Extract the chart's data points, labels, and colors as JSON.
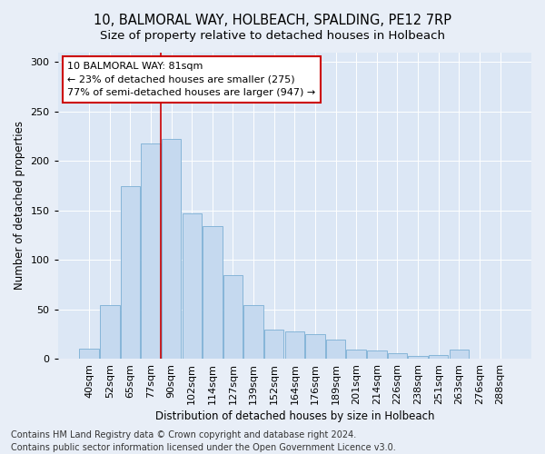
{
  "title": "10, BALMORAL WAY, HOLBEACH, SPALDING, PE12 7RP",
  "subtitle": "Size of property relative to detached houses in Holbeach",
  "xlabel": "Distribution of detached houses by size in Holbeach",
  "ylabel": "Number of detached properties",
  "categories": [
    "40sqm",
    "52sqm",
    "65sqm",
    "77sqm",
    "90sqm",
    "102sqm",
    "114sqm",
    "127sqm",
    "139sqm",
    "152sqm",
    "164sqm",
    "176sqm",
    "189sqm",
    "201sqm",
    "214sqm",
    "226sqm",
    "238sqm",
    "251sqm",
    "263sqm",
    "276sqm",
    "288sqm"
  ],
  "values": [
    10,
    54,
    175,
    218,
    222,
    147,
    134,
    85,
    54,
    29,
    28,
    25,
    19,
    9,
    8,
    6,
    3,
    4,
    9,
    0,
    0
  ],
  "bar_color": "#c5d9ef",
  "bar_edge_color": "#7bafd4",
  "red_line_x": 3.5,
  "annotation_text": "10 BALMORAL WAY: 81sqm\n← 23% of detached houses are smaller (275)\n77% of semi-detached houses are larger (947) →",
  "annotation_box_color": "white",
  "annotation_box_edge_color": "#cc0000",
  "ylim": [
    0,
    310
  ],
  "yticks": [
    0,
    50,
    100,
    150,
    200,
    250,
    300
  ],
  "footer_line1": "Contains HM Land Registry data © Crown copyright and database right 2024.",
  "footer_line2": "Contains public sector information licensed under the Open Government Licence v3.0.",
  "background_color": "#e8eef7",
  "plot_bg_color": "#dce7f5",
  "grid_color": "white",
  "title_fontsize": 10.5,
  "subtitle_fontsize": 9.5,
  "axis_label_fontsize": 8.5,
  "tick_fontsize": 8,
  "annotation_fontsize": 8,
  "footer_fontsize": 7
}
